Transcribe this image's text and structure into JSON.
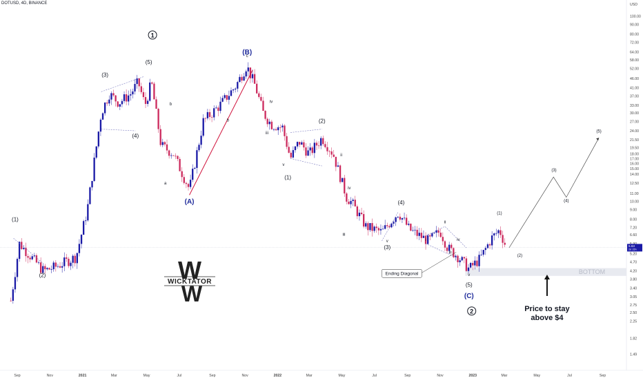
{
  "header": {
    "symbol_line": "DOTUSD, 4D, BINANCE"
  },
  "colors": {
    "up": "#1a1aa6",
    "down": "#cc2b5e",
    "wave_line": "#d0103a",
    "dashed": "#7a7ac0",
    "bottom_zone": "#e8eaf0"
  },
  "chart_data": {
    "type": "candlestick",
    "scale": "log",
    "ylim": [
      1.22,
      116
    ],
    "y_unit": "USD",
    "y_ticks": [
      "1.22",
      "1.49",
      "1.82",
      "2.25",
      "2.50",
      "2.75",
      "3.05",
      "3.40",
      "3.80",
      "4.20",
      "4.70",
      "5.20",
      "5.90",
      "6.60",
      "7.20",
      "8.00",
      "9.00",
      "10.00",
      "11.00",
      "12.50",
      "14.00",
      "15.00",
      "16.00",
      "17.00",
      "18.00",
      "19.50",
      "21.50",
      "24.00",
      "27.00",
      "30.00",
      "33.00",
      "37.00",
      "41.00",
      "46.00",
      "52.00",
      "58.00",
      "64.00",
      "72.00",
      "80.00",
      "90.00",
      "100.00",
      "116.00"
    ],
    "x_ticks": [
      "Sep",
      "Nov",
      "2021",
      "Mar",
      "May",
      "Jul",
      "Sep",
      "Nov",
      "2022",
      "Mar",
      "May",
      "Jul",
      "Sep",
      "Nov",
      "2023",
      "Mar",
      "May",
      "Jul",
      "Sep"
    ],
    "current_price": "5.63",
    "price_tag_sub": "2d 15h",
    "price_path_key": [
      [
        "2020-08-20",
        2.9
      ],
      [
        "2020-09-05",
        5.9
      ],
      [
        "2020-10-20",
        4.2
      ],
      [
        "2020-11-10",
        4.4
      ],
      [
        "2020-12-20",
        5.0
      ],
      [
        "2021-01-10",
        9.0
      ],
      [
        "2021-02-05",
        30
      ],
      [
        "2021-02-20",
        38
      ],
      [
        "2021-03-10",
        34
      ],
      [
        "2021-04-01",
        38
      ],
      [
        "2021-04-15",
        44
      ],
      [
        "2021-04-28",
        33
      ],
      [
        "2021-05-10",
        44
      ],
      [
        "2021-05-28",
        20
      ],
      [
        "2021-06-20",
        18
      ],
      [
        "2021-07-20",
        11.6
      ],
      [
        "2021-08-15",
        27
      ],
      [
        "2021-09-15",
        33
      ],
      [
        "2021-10-15",
        42
      ],
      [
        "2021-11-04",
        54
      ],
      [
        "2021-11-20",
        42
      ],
      [
        "2021-12-05",
        30
      ],
      [
        "2021-12-20",
        26
      ],
      [
        "2022-01-10",
        25
      ],
      [
        "2022-01-25",
        17
      ],
      [
        "2022-02-10",
        21
      ],
      [
        "2022-03-01",
        18
      ],
      [
        "2022-03-25",
        22
      ],
      [
        "2022-04-15",
        18
      ],
      [
        "2022-05-10",
        10.5
      ],
      [
        "2022-05-20",
        9.8
      ],
      [
        "2022-06-15",
        7.3
      ],
      [
        "2022-07-15",
        6.8
      ],
      [
        "2022-08-15",
        8.7
      ],
      [
        "2022-09-05",
        7.0
      ],
      [
        "2022-10-10",
        6.1
      ],
      [
        "2022-11-01",
        6.9
      ],
      [
        "2022-11-15",
        5.6
      ],
      [
        "2022-12-05",
        5.0
      ],
      [
        "2022-12-25",
        4.3
      ],
      [
        "2023-01-15",
        4.9
      ],
      [
        "2023-02-05",
        6.3
      ],
      [
        "2023-02-20",
        7.0
      ],
      [
        "2023-03-05",
        5.6
      ]
    ],
    "projection": [
      [
        "2023-03-10",
        5.6
      ],
      [
        "2023-06-01",
        13.5
      ],
      [
        "2023-06-25",
        10.5
      ],
      [
        "2023-08-25",
        22.0
      ]
    ],
    "bottom_zone": {
      "from": 3.95,
      "to": 4.35,
      "label": "BOTTOM"
    },
    "annotations": {
      "wave_1": "1",
      "wave_2": "2",
      "wave_A": "(A)",
      "wave_B": "(B)",
      "wave_C": "(C)",
      "sub_1": "(1)",
      "sub_2": "(2)",
      "sub_3": "(3)",
      "sub_4": "(4)",
      "sub_5": "(5)",
      "roman_i": "i",
      "roman_ii": "ii",
      "roman_iii": "iii",
      "roman_iv": "iv",
      "roman_v": "v",
      "small_a": "a",
      "small_b": "b",
      "small_c": "c",
      "ending_diagonal": "Ending Diagonal",
      "price_note": "Price to stay\nabove $4",
      "brand": "WICKTATOR",
      "brand_mark": "W"
    }
  }
}
